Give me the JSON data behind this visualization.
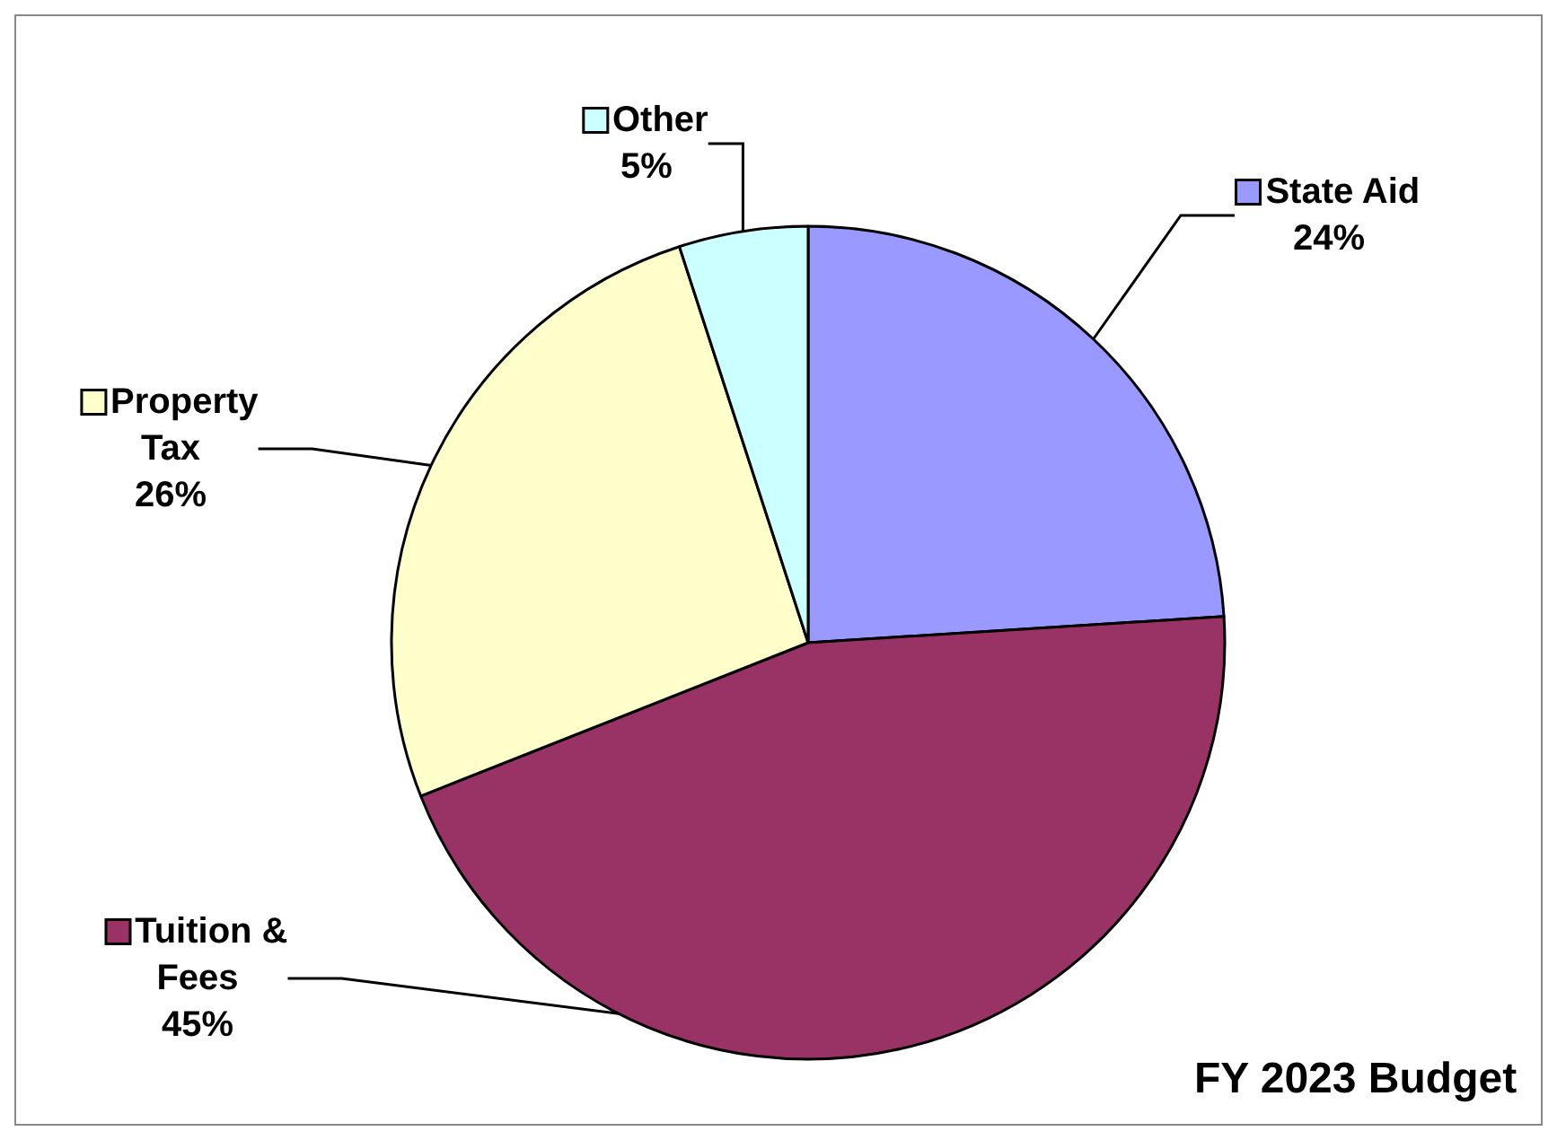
{
  "chart_data": {
    "type": "pie",
    "title": "FY 2023 Budget",
    "categories": [
      "State Aid",
      "Tuition & Fees",
      "Property Tax",
      "Other"
    ],
    "values": [
      24,
      45,
      26,
      5
    ],
    "value_labels": [
      "24%",
      "45%",
      "26%",
      "5%"
    ],
    "colors": [
      "#9999ff",
      "#993366",
      "#ffffcc",
      "#ccffff"
    ],
    "legend": "left"
  }
}
